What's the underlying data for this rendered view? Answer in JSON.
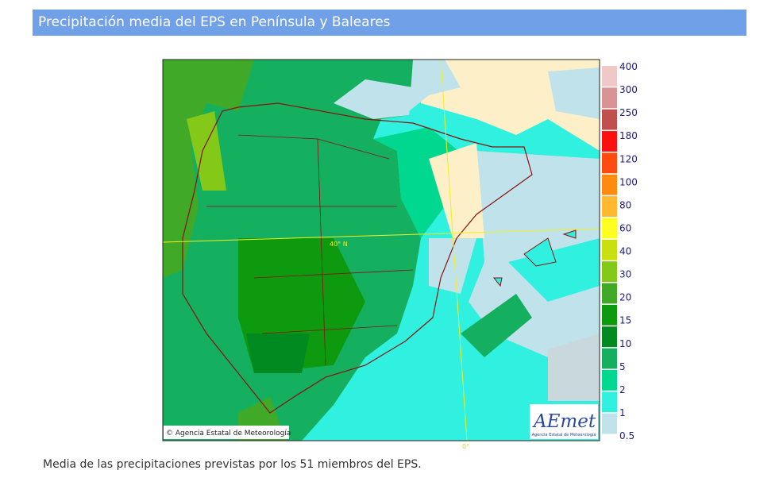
{
  "header": {
    "title": "Precipitación media del EPS en Península y Baleares"
  },
  "map": {
    "copyright": "© Agencia Estatal de Meteorología",
    "logo": {
      "text": "AEmet",
      "subtitle": "Agencia Estatal de Meteorología"
    },
    "lat_label": "40° N",
    "lon_label": "0°"
  },
  "legend": {
    "labels": [
      "400",
      "300",
      "250",
      "180",
      "120",
      "100",
      "80",
      "60",
      "40",
      "30",
      "20",
      "15",
      "10",
      "5",
      "2",
      "1",
      "0.5"
    ],
    "colors": [
      "#f0c8c8",
      "#d89494",
      "#c05050",
      "#ff1010",
      "#ff4a10",
      "#ff8a10",
      "#ffb830",
      "#ffff20",
      "#c8e010",
      "#84c818",
      "#40aa28",
      "#0e9a0e",
      "#008a20",
      "#14b060",
      "#00d890",
      "#30f0e0",
      "#c0e2ea"
    ]
  },
  "caption": "Media de las precipitaciones previstas por los 51 miembros del EPS."
}
